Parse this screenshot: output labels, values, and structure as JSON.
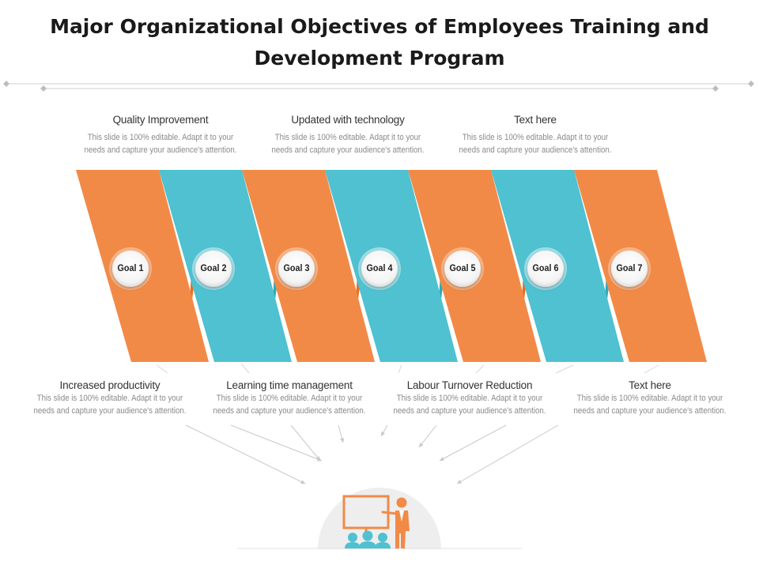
{
  "title": "Major Organizational Objectives of Employees Training and Development Program",
  "colors": {
    "orange": "#F28A47",
    "orange_dark": "#E86F23",
    "teal": "#4FC1D0",
    "teal_dark": "#2FA9B7"
  },
  "goals": [
    "Goal 1",
    "Goal 2",
    "Goal 3",
    "Goal 4",
    "Goal 5",
    "Goal 6",
    "Goal 7"
  ],
  "top_items": [
    {
      "heading": "Quality Improvement",
      "line1": "This slide is 100% editable. Adapt it to your",
      "line2": "needs and capture your audience's attention."
    },
    {
      "heading": "Updated with technology",
      "line1": "This slide is 100% editable. Adapt it to your",
      "line2": "needs and capture your audience's attention."
    },
    {
      "heading": "Text here",
      "line1": "This slide is 100% editable. Adapt it to your",
      "line2": "needs and capture your audience's attention."
    }
  ],
  "bottom_items": [
    {
      "heading": "Increased productivity",
      "line1": "This slide is 100% editable. Adapt it to your",
      "line2": "needs and capture your audience's attention."
    },
    {
      "heading": "Learning time management",
      "line1": "This slide is 100% editable. Adapt it to your",
      "line2": "needs and capture your audience's attention."
    },
    {
      "heading": "Labour Turnover Reduction",
      "line1": "This slide is 100% editable. Adapt it to your",
      "line2": "needs and capture your audience's attention."
    },
    {
      "heading": "Text here",
      "line1": "This slide is 100% editable. Adapt it to your",
      "line2": "needs and capture your audience's attention."
    }
  ],
  "icons": {
    "center": "teacher-presentation-icon"
  }
}
